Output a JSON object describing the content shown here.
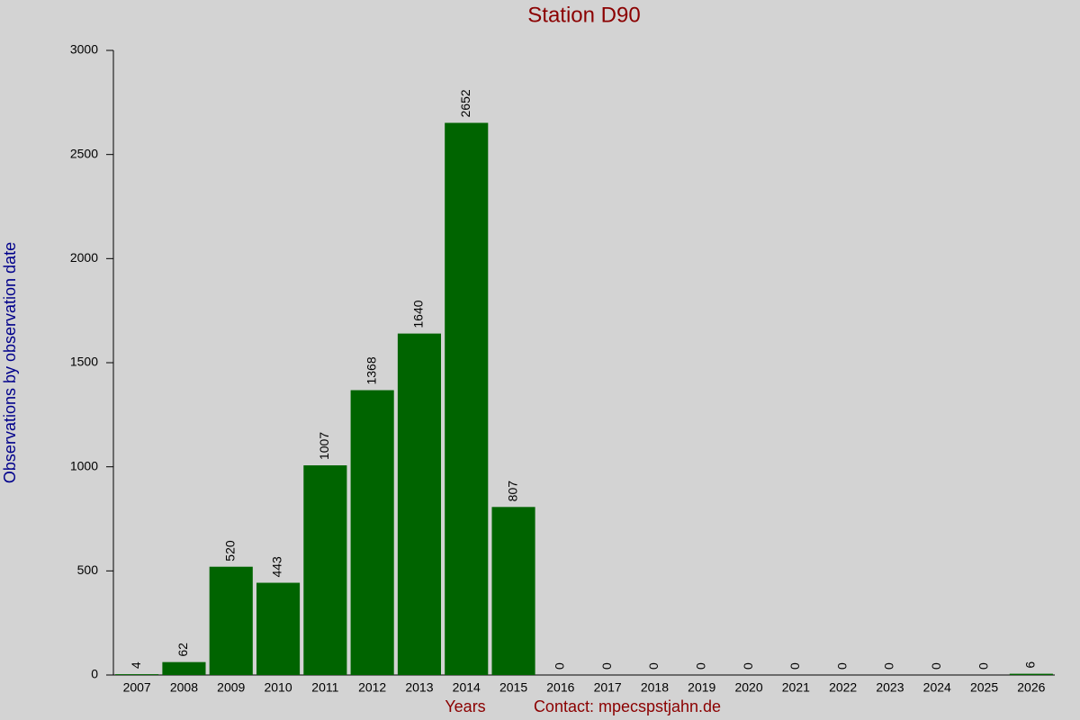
{
  "chart_data": {
    "type": "bar",
    "title": "Station D90",
    "x_label": "Years",
    "contact": "Contact: mpecs​pstjahn.de",
    "y_label": "Observations by observation date",
    "categories": [
      "2007",
      "2008",
      "2009",
      "2010",
      "2011",
      "2012",
      "2013",
      "2014",
      "2015",
      "2016",
      "2017",
      "2018",
      "2019",
      "2020",
      "2021",
      "2022",
      "2023",
      "2024",
      "2025",
      "2026"
    ],
    "values": [
      4,
      62,
      520,
      443,
      1007,
      1368,
      1640,
      2652,
      807,
      0,
      0,
      0,
      0,
      0,
      0,
      0,
      0,
      0,
      0,
      6
    ],
    "color": "#006400",
    "ylim": [
      0,
      3000
    ],
    "yticks": [
      0,
      500,
      1000,
      1500,
      2000,
      2500,
      3000
    ]
  }
}
